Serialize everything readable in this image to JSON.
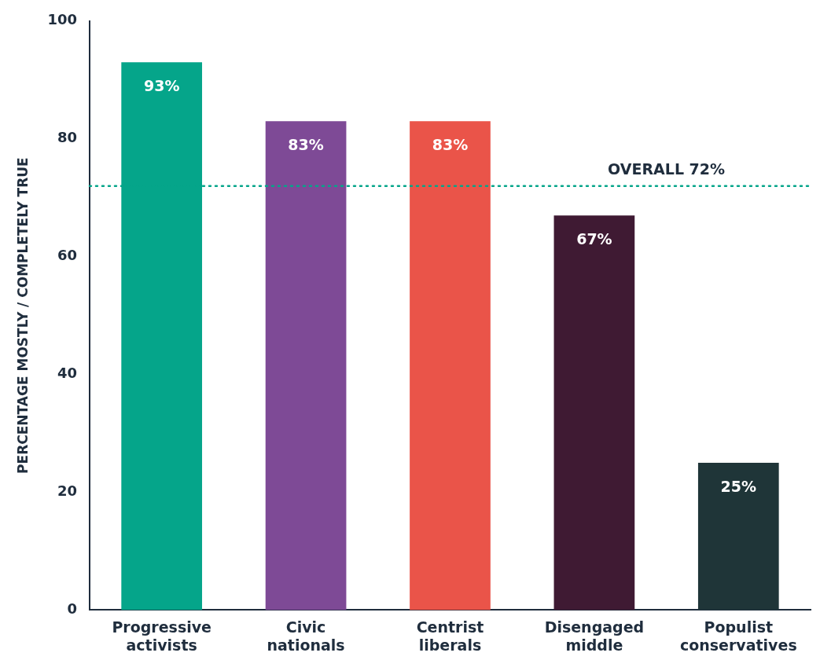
{
  "chart_data": {
    "type": "bar",
    "ylabel": "PERCENTAGE MOSTLY / COMPLETELY TRUE",
    "categories": [
      "Progressive activists",
      "Civic nationals",
      "Centrist liberals",
      "Disengaged middle",
      "Populist conservatives"
    ],
    "values": [
      93,
      83,
      83,
      67,
      25
    ],
    "colors": [
      "#05a58a",
      "#7e4a96",
      "#ea5449",
      "#3f1a33",
      "#1f3538"
    ],
    "data_labels": true,
    "value_labels": [
      "93%",
      "83%",
      "83%",
      "67%",
      "25%"
    ],
    "ref_lines": [
      {
        "axis": "y",
        "value": 72,
        "label": "OVERALL 72%",
        "color": "#05a58a",
        "line_style": "dotted"
      }
    ],
    "ylim": [
      0,
      100
    ],
    "yticks": [
      0,
      20,
      40,
      60,
      80,
      100
    ],
    "grid": false,
    "legend": false
  }
}
